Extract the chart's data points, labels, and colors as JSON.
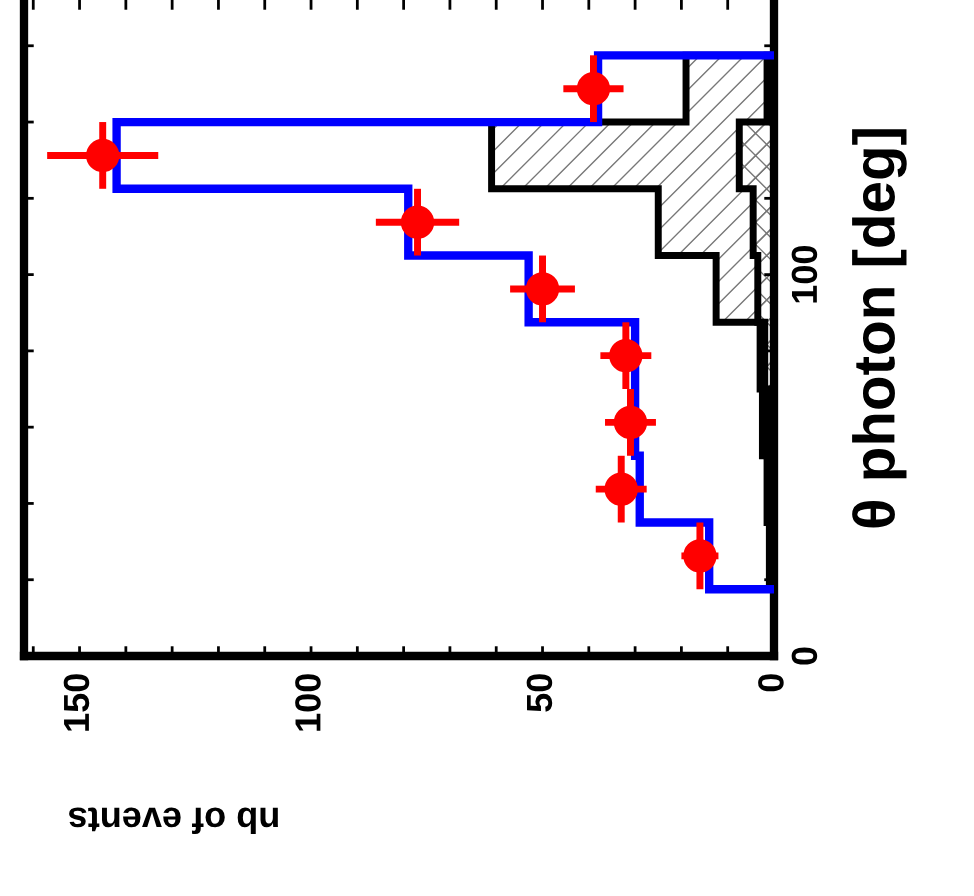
{
  "chart_data": {
    "type": "histogram",
    "orientation": "horizontal",
    "xlabel": "nb of events",
    "ylabel": "θ photon [deg]",
    "grid": false,
    "legend": false,
    "bins": [
      17.5,
      35,
      52.5,
      70,
      87.5,
      105,
      122.5,
      140,
      157.5
    ],
    "xlim": [
      162,
      0
    ],
    "xticks": [
      0,
      {
        "value": 10,
        "label": null
      },
      {
        "value": 20,
        "label": null
      },
      {
        "value": 30,
        "label": null
      },
      {
        "value": 40,
        "label": null
      },
      50,
      {
        "value": 60,
        "label": null
      },
      {
        "value": 70,
        "label": null
      },
      {
        "value": 80,
        "label": null
      },
      {
        "value": 90,
        "label": null
      },
      100,
      {
        "value": 110,
        "label": null
      },
      {
        "value": 120,
        "label": null
      },
      {
        "value": 130,
        "label": null
      },
      {
        "value": 140,
        "label": null
      },
      150,
      {
        "value": 160,
        "label": null
      }
    ],
    "ylim": [
      0,
      172
    ],
    "yticks": [
      0,
      {
        "value": 20,
        "label": null
      },
      {
        "value": 40,
        "label": null
      },
      {
        "value": 60,
        "label": null
      },
      {
        "value": 80,
        "label": null
      },
      100,
      {
        "value": 120,
        "label": null
      },
      {
        "value": 140,
        "label": null
      },
      {
        "value": 160,
        "label": null
      }
    ],
    "series": [
      {
        "color": "#0000ff",
        "values": [
          14,
          29,
          30,
          30,
          53,
          79,
          142,
          38
        ]
      },
      {
        "color": "#000000",
        "values": [
          1,
          1.5,
          2.5,
          3,
          12.5,
          25,
          61,
          19
        ]
      },
      {
        "color": "#000000",
        "values": [
          0.5,
          1,
          1.5,
          2,
          3.5,
          4.5,
          7.5,
          1.5
        ]
      },
      {
        "type": "scatter",
        "color": "#ff0000",
        "marker": "circle",
        "x": [
          26.25,
          43.75,
          61.25,
          78.75,
          96.25,
          113.75,
          131.25,
          148.75
        ],
        "values": [
          16,
          33,
          31,
          32,
          50,
          77,
          145,
          39
        ],
        "errors": [
          4,
          5.5,
          5.5,
          5.5,
          7,
          9,
          12,
          6.5
        ],
        "xerrors": [
          8.75,
          8.75,
          8.75,
          8.75,
          8.75,
          8.75,
          8.75,
          8.75
        ]
      }
    ]
  }
}
